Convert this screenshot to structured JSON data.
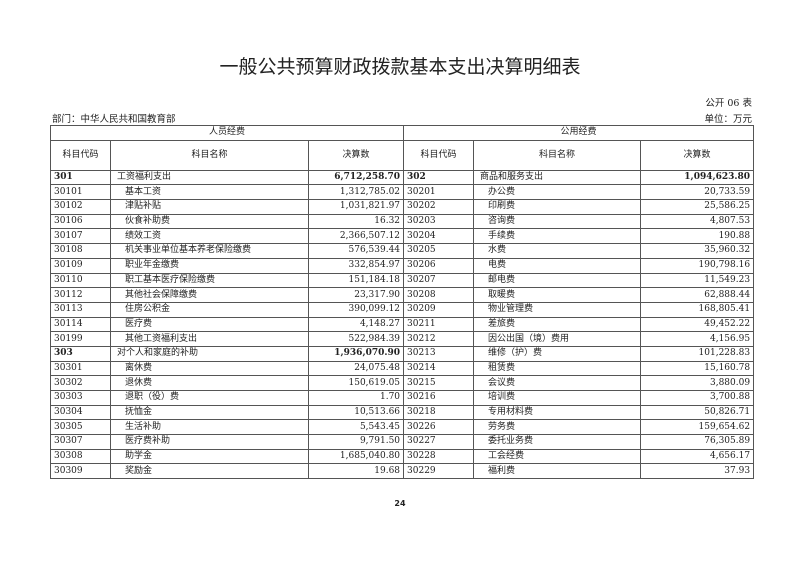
{
  "title": "一般公共预算财政拨款基本支出决算明细表",
  "form_no": "公开 06 表",
  "department": "部门：中华人民共和国教育部",
  "unit": "单位：万元",
  "group_headers": [
    "人员经费",
    "公用经费"
  ],
  "column_headers": [
    "科目代码",
    "科目名称",
    "决算数",
    "科目代码",
    "科目名称",
    "决算数"
  ],
  "rows": [
    {
      "lc": "301",
      "ln": "工资福利支出",
      "la": "6,712,258.70",
      "lb": true,
      "rc": "302",
      "rn": "商品和服务支出",
      "ra": "1,094,623.80",
      "rb": true
    },
    {
      "lc": "30101",
      "ln": "基本工资",
      "la": "1,312,785.02",
      "rc": "30201",
      "rn": "办公费",
      "ra": "20,733.59"
    },
    {
      "lc": "30102",
      "ln": "津贴补贴",
      "la": "1,031,821.97",
      "rc": "30202",
      "rn": "印刷费",
      "ra": "25,586.25"
    },
    {
      "lc": "30106",
      "ln": "伙食补助费",
      "la": "16.32",
      "rc": "30203",
      "rn": "咨询费",
      "ra": "4,807.53"
    },
    {
      "lc": "30107",
      "ln": "绩效工资",
      "la": "2,366,507.12",
      "rc": "30204",
      "rn": "手续费",
      "ra": "190.88"
    },
    {
      "lc": "30108",
      "ln": "机关事业单位基本养老保险缴费",
      "la": "576,539.44",
      "rc": "30205",
      "rn": "水费",
      "ra": "35,960.32"
    },
    {
      "lc": "30109",
      "ln": "职业年金缴费",
      "la": "332,854.97",
      "rc": "30206",
      "rn": "电费",
      "ra": "190,798.16"
    },
    {
      "lc": "30110",
      "ln": "职工基本医疗保险缴费",
      "la": "151,184.18",
      "rc": "30207",
      "rn": "邮电费",
      "ra": "11,549.23"
    },
    {
      "lc": "30112",
      "ln": "其他社会保障缴费",
      "la": "23,317.90",
      "rc": "30208",
      "rn": "取暖费",
      "ra": "62,888.44"
    },
    {
      "lc": "30113",
      "ln": "住房公积金",
      "la": "390,099.12",
      "rc": "30209",
      "rn": "物业管理费",
      "ra": "168,805.41"
    },
    {
      "lc": "30114",
      "ln": "医疗费",
      "la": "4,148.27",
      "rc": "30211",
      "rn": "差旅费",
      "ra": "49,452.22"
    },
    {
      "lc": "30199",
      "ln": "其他工资福利支出",
      "la": "522,984.39",
      "rc": "30212",
      "rn": "因公出国（境）费用",
      "ra": "4,156.95"
    },
    {
      "lc": "303",
      "ln": "对个人和家庭的补助",
      "la": "1,936,070.90",
      "lb": true,
      "rc": "30213",
      "rn": "维修（护）费",
      "ra": "101,228.83"
    },
    {
      "lc": "30301",
      "ln": "离休费",
      "la": "24,075.48",
      "rc": "30214",
      "rn": "租赁费",
      "ra": "15,160.78"
    },
    {
      "lc": "30302",
      "ln": "退休费",
      "la": "150,619.05",
      "rc": "30215",
      "rn": "会议费",
      "ra": "3,880.09"
    },
    {
      "lc": "30303",
      "ln": "退职（役）费",
      "la": "1.70",
      "rc": "30216",
      "rn": "培训费",
      "ra": "3,700.88"
    },
    {
      "lc": "30304",
      "ln": "抚恤金",
      "la": "10,513.66",
      "rc": "30218",
      "rn": "专用材料费",
      "ra": "50,826.71"
    },
    {
      "lc": "30305",
      "ln": "生活补助",
      "la": "5,543.45",
      "rc": "30226",
      "rn": "劳务费",
      "ra": "159,654.62"
    },
    {
      "lc": "30307",
      "ln": "医疗费补助",
      "la": "9,791.50",
      "rc": "30227",
      "rn": "委托业务费",
      "ra": "76,305.89"
    },
    {
      "lc": "30308",
      "ln": "助学金",
      "la": "1,685,040.80",
      "rc": "30228",
      "rn": "工会经费",
      "ra": "4,656.17"
    },
    {
      "lc": "30309",
      "ln": "奖励金",
      "la": "19.68",
      "rc": "30229",
      "rn": "福利费",
      "ra": "37.93"
    }
  ],
  "page_number": "24"
}
